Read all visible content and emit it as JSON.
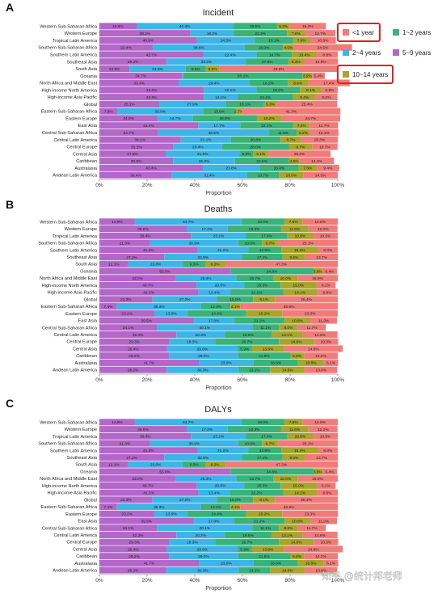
{
  "colors": {
    "lt1": "#f07c7a",
    "y1_2": "#3ab37a",
    "y2_4": "#3db5e6",
    "y5_9": "#b367c9",
    "y10_14": "#a8a62c",
    "highlight": "#e02020"
  },
  "legend": [
    {
      "label": "<1 year",
      "color": "#f07c7a"
    },
    {
      "label": "1~2 years",
      "color": "#3ab37a"
    },
    {
      "label": "2~4 years",
      "color": "#3db5e6"
    },
    {
      "label": "5~9 years",
      "color": "#b367c9"
    },
    {
      "label": "10~14 years",
      "color": "#a8a62c"
    }
  ],
  "watermark": "知乎 @统计邦老师",
  "chart_data": [
    {
      "panel": "A",
      "type": "bar",
      "orientation": "horizontal-stacked-100",
      "title": "Incident",
      "xlabel": "Proportion",
      "xticks": [
        "0%",
        "20%",
        "40%",
        "60%",
        "80%",
        "100%"
      ],
      "series_order": [
        "5~9 years",
        "2~4 years",
        "1~2 years",
        "10~14 years",
        "<1 year"
      ],
      "categories": [
        "Western Sub-Saharan Africa",
        "Western Europe",
        "Tropical Latin America",
        "Southern Sub-Saharan Africa",
        "Southern Latin America",
        "Southeast Asia",
        "South Asia",
        "Oceania",
        "North Africa and Middle East",
        "High-income North America",
        "High-income Asia Pacific",
        "Global",
        "Eastern Sub-Saharan Africa",
        "Eastern Europe",
        "East Asia",
        "Central Sub-Saharan Africa",
        "Central Latin America",
        "Central Europe",
        "Central Asia",
        "Caribbean",
        "Australasia",
        "Andean Latin America"
      ],
      "rows": [
        [
          15.6,
          40.4,
          18.6,
          5.2,
          15.2
        ],
        [
          38.2,
          18.2,
          22.3,
          7.6,
          12.7
        ],
        [
          40.9,
          24.3,
          16.1,
          7.0,
          10.9
        ],
        [
          22.4,
          38.6,
          16.0,
          4.5,
          24.5
        ],
        [
          43.7,
          22.4,
          14.7,
          10.4,
          8.8
        ],
        [
          28.2,
          33.3,
          17.8,
          6.3,
          14.5
        ],
        [
          12.6,
          23.6,
          8.5,
          5.6,
          49.8
        ],
        [
          34.7,
          0.5,
          50.1,
          3.9,
          5.4
        ],
        [
          33.4,
          29.4,
          16.2,
          8.6,
          17.4
        ],
        [
          43.8,
          22.1,
          18.2,
          9.1,
          6.8
        ],
        [
          43.8,
          14.1,
          23.4,
          9.4,
          9.2
        ],
        [
          25.1,
          27.9,
          16.1,
          5.3,
          25.4
        ],
        [
          7.6,
          35.9,
          13.6,
          2.7,
          41.3
        ],
        [
          24.5,
          14.7,
          26.9,
          10.2,
          24.7
        ],
        [
          41.4,
          17.7,
          22.1,
          7.2,
          11.7
        ],
        [
          24.7,
          46.5,
          11.8,
          5.2,
          12.1
        ],
        [
          34.1,
          21.1,
          20.8,
          8.7,
          15.3
        ],
        [
          31.1,
          20.4,
          28.0,
          9.7,
          10.7
        ],
        [
          27.8,
          31.0,
          5.9,
          6.1,
          26.2
        ],
        [
          30.9,
          26.0,
          22.6,
          4.5,
          14.4
        ],
        [
          43.4,
          23.8,
          16.4,
          7.6,
          9.4
        ],
        [
          30.4,
          31.4,
          13.7,
          10.0,
          14.5
        ]
      ]
    },
    {
      "panel": "B",
      "type": "bar",
      "orientation": "horizontal-stacked-100",
      "title": "Deaths",
      "xlabel": "Proportion",
      "xticks": [
        "0%",
        "20%",
        "40%",
        "60%",
        "80%",
        "100%"
      ],
      "series_order": [
        "5~9 years",
        "2~4 years",
        "1~2 years",
        "10~14 years",
        "<1 year"
      ],
      "categories": [
        "Western Sub-Saharan Africa",
        "Western Europe",
        "Tropical Latin America",
        "Southern Sub-Saharan Africa",
        "Southern Latin America",
        "Southeast Asia",
        "South Asia",
        "Oceania",
        "North Africa and Middle East",
        "High-income North America",
        "High-income Asia Pacific",
        "Global",
        "Eastern Sub-Saharan Africa",
        "Eastern Europe",
        "East Asia",
        "Central Sub-Saharan Africa",
        "Central Latin America",
        "Central Europe",
        "Central Asia",
        "Caribbean",
        "Australasia",
        "Andean Latin America"
      ],
      "rows": [
        [
          14.9,
          44.7,
          18.0,
          7.6,
          14.8
        ],
        [
          36.6,
          17.2,
          22.3,
          11.6,
          12.2
        ],
        [
          38.4,
          23.1,
          17.4,
          10.6,
          10.5
        ],
        [
          21.3,
          36.9,
          10.0,
          6.7,
          25.1
        ],
        [
          41.2,
          21.2,
          13.9,
          15.4,
          8.3
        ],
        [
          27.2,
          32.6,
          17.1,
          9.5,
          13.7
        ],
        [
          12.1,
          23.0,
          9.3,
          8.3,
          47.3
        ],
        [
          55.0,
          0.0,
          34.8,
          3.6,
          6.4
        ],
        [
          32.0,
          25.4,
          15.7,
          10.0,
          16.9
        ],
        [
          40.7,
          20.0,
          15.3,
          15.0,
          8.1
        ],
        [
          41.5,
          13.4,
          22.2,
          14.1,
          8.8
        ],
        [
          22.3,
          27.2,
          15.0,
          9.1,
          26.4
        ],
        [
          7.4,
          35.3,
          12.3,
          4.1,
          40.9
        ],
        [
          23.2,
          13.9,
          24.4,
          15.2,
          23.3
        ],
        [
          39.5,
          17.0,
          21.2,
          10.8,
          11.2
        ],
        [
          24.1,
          40.1,
          11.1,
          8.0,
          11.7
        ],
        [
          32.3,
          20.3,
          19.6,
          13.1,
          14.6
        ],
        [
          29.3,
          19.3,
          26.7,
          14.6,
          10.3
        ],
        [
          28.4,
          29.6,
          5.9,
          13.6,
          24.6
        ],
        [
          29.2,
          29.0,
          21.8,
          5.8,
          14.2
        ],
        [
          41.7,
          23.0,
          18.6,
          10.8,
          6.1
        ],
        [
          28.2,
          30.3,
          13.1,
          14.6,
          13.6
        ]
      ]
    },
    {
      "panel": "C",
      "type": "bar",
      "orientation": "horizontal-stacked-100",
      "title": "DALYs",
      "xlabel": "Proportion",
      "xticks": [
        "0%",
        "20%",
        "40%",
        "60%",
        "80%",
        "100%"
      ],
      "series_order": [
        "5~9 years",
        "2~4 years",
        "1~2 years",
        "10~14 years",
        "<1 year"
      ],
      "categories": [
        "Western Sub-Saharan Africa",
        "Western Europe",
        "Tropical Latin America",
        "Southern Sub-Saharan Africa",
        "Southern Latin America",
        "Southeast Asia",
        "South Asia",
        "Oceania",
        "North Africa and Middle East",
        "High-income North America",
        "High-income Asia Pacific",
        "Global",
        "Eastern Sub-Saharan Africa",
        "Eastern Europe",
        "East Asia",
        "Central Sub-Saharan Africa",
        "Central Latin America",
        "Central Europe",
        "Central Asia",
        "Caribbean",
        "Australasia",
        "Andean Latin America"
      ],
      "rows": [
        [
          14.9,
          44.7,
          18.0,
          7.6,
          14.8
        ],
        [
          36.6,
          17.2,
          22.3,
          11.6,
          12.2
        ],
        [
          38.4,
          23.1,
          17.4,
          10.6,
          10.5
        ],
        [
          21.3,
          36.9,
          10.0,
          6.7,
          25.1
        ],
        [
          41.2,
          21.2,
          13.9,
          15.4,
          8.3
        ],
        [
          27.2,
          32.6,
          17.1,
          9.5,
          13.7
        ],
        [
          12.1,
          23.0,
          9.3,
          8.3,
          47.3
        ],
        [
          55.0,
          0.0,
          34.8,
          3.6,
          6.4
        ],
        [
          32.0,
          25.4,
          15.7,
          10.0,
          16.9
        ],
        [
          40.7,
          20.0,
          15.3,
          15.0,
          8.1
        ],
        [
          41.5,
          13.4,
          22.2,
          14.1,
          8.8
        ],
        [
          22.3,
          27.2,
          15.0,
          9.1,
          26.4
        ],
        [
          7.4,
          35.3,
          12.3,
          4.1,
          40.9
        ],
        [
          23.2,
          13.9,
          24.4,
          15.2,
          23.3
        ],
        [
          39.5,
          17.0,
          21.2,
          10.8,
          11.2
        ],
        [
          24.1,
          40.1,
          11.1,
          8.0,
          11.7
        ],
        [
          32.3,
          20.3,
          19.6,
          13.1,
          14.6
        ],
        [
          29.3,
          19.3,
          26.7,
          14.6,
          10.3
        ],
        [
          28.4,
          29.6,
          5.9,
          13.6,
          24.6
        ],
        [
          29.2,
          29.0,
          21.8,
          5.8,
          14.2
        ],
        [
          41.7,
          23.0,
          18.6,
          10.8,
          6.1
        ],
        [
          28.2,
          30.3,
          13.1,
          14.6,
          13.6
        ]
      ]
    }
  ]
}
